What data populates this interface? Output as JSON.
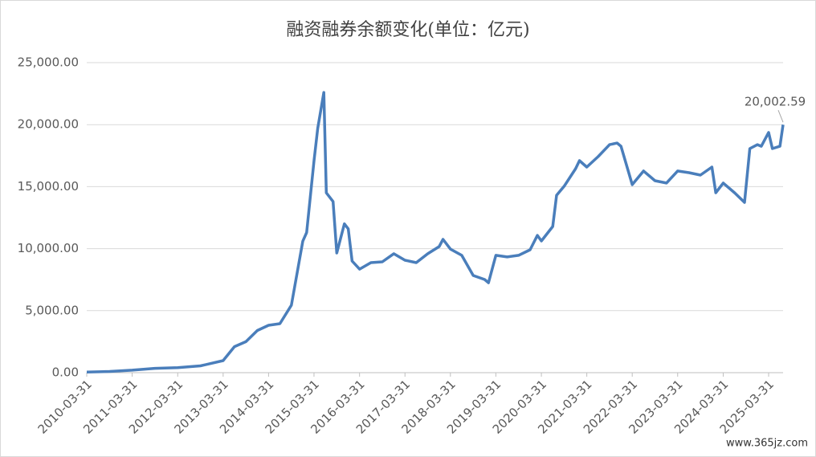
{
  "chart_data": {
    "type": "line",
    "title": "融资融券余额变化(单位：亿元)",
    "watermark": "www.365jz.com",
    "x": [
      "2010-03-31",
      "2010-09-30",
      "2011-03-31",
      "2011-09-30",
      "2012-03-31",
      "2012-09-30",
      "2013-03-31",
      "2013-06-30",
      "2013-09-30",
      "2013-12-31",
      "2014-03-31",
      "2014-06-30",
      "2014-09-30",
      "2014-12-31",
      "2015-01-31",
      "2015-03-31",
      "2015-04-30",
      "2015-06-18",
      "2015-07-08",
      "2015-08-31",
      "2015-09-30",
      "2015-11-30",
      "2015-12-31",
      "2016-01-31",
      "2016-03-31",
      "2016-06-30",
      "2016-09-30",
      "2016-12-31",
      "2017-03-31",
      "2017-06-30",
      "2017-09-30",
      "2017-12-31",
      "2018-01-31",
      "2018-03-31",
      "2018-06-30",
      "2018-09-30",
      "2018-12-31",
      "2019-01-31",
      "2019-03-31",
      "2019-06-30",
      "2019-09-30",
      "2019-12-31",
      "2020-02-28",
      "2020-03-31",
      "2020-06-30",
      "2020-07-31",
      "2020-09-30",
      "2020-12-31",
      "2021-01-31",
      "2021-03-31",
      "2021-06-30",
      "2021-09-30",
      "2021-11-30",
      "2021-12-31",
      "2022-03-31",
      "2022-06-30",
      "2022-09-30",
      "2022-12-31",
      "2023-03-31",
      "2023-06-30",
      "2023-09-30",
      "2023-12-31",
      "2024-01-31",
      "2024-03-31",
      "2024-06-30",
      "2024-09-18",
      "2024-10-31",
      "2024-12-31",
      "2025-01-31",
      "2025-03-31",
      "2025-04-30",
      "2025-06-30",
      "2025-07-25"
    ],
    "series": [
      {
        "name": "融资融券余额",
        "color": "#4a7ebb",
        "values": [
          50,
          100,
          200,
          350,
          400,
          550,
          970,
          2100,
          2500,
          3400,
          3820,
          3950,
          5440,
          10600,
          11300,
          17100,
          19700,
          22600,
          14500,
          13800,
          9650,
          12000,
          11600,
          9000,
          8350,
          8870,
          8940,
          9590,
          9070,
          8870,
          9590,
          10170,
          10750,
          9970,
          9460,
          7840,
          7510,
          7250,
          9460,
          9330,
          9460,
          9910,
          11070,
          10620,
          11790,
          14310,
          15030,
          16450,
          17100,
          16580,
          17420,
          18390,
          18520,
          18260,
          15160,
          16260,
          15480,
          15290,
          16260,
          16130,
          15930,
          16580,
          14510,
          15290,
          14510,
          13730,
          18070,
          18390,
          18260,
          19370,
          18070,
          18260,
          20002.59
        ]
      }
    ],
    "value_labels": [
      null,
      null,
      null,
      null,
      null,
      null,
      null,
      null,
      null,
      null,
      null,
      null,
      null,
      null,
      null,
      null,
      null,
      null,
      null,
      null,
      null,
      null,
      null,
      null,
      null,
      null,
      null,
      null,
      null,
      null,
      null,
      null,
      null,
      null,
      null,
      null,
      null,
      null,
      null,
      null,
      null,
      null,
      null,
      null,
      null,
      null,
      null,
      null,
      null,
      null,
      null,
      null,
      null,
      null,
      null,
      null,
      null,
      null,
      null,
      null,
      null,
      null,
      null,
      null,
      null,
      null,
      null,
      null,
      null,
      null,
      null,
      null,
      "20,002.59"
    ],
    "xlim": [
      "2010-03-31",
      "2025-07-25"
    ],
    "xticks": [
      "2010-03-31",
      "2011-03-31",
      "2012-03-31",
      "2013-03-31",
      "2014-03-31",
      "2015-03-31",
      "2016-03-31",
      "2017-03-31",
      "2018-03-31",
      "2019-03-31",
      "2020-03-31",
      "2021-03-31",
      "2022-03-31",
      "2023-03-31",
      "2024-03-31",
      "2025-03-31"
    ],
    "ylim": [
      0,
      25000
    ],
    "yticks": [
      {
        "value": 0,
        "label": "0.00"
      },
      {
        "value": 5000,
        "label": "5,000.00"
      },
      {
        "value": 10000,
        "label": "10,000.00"
      },
      {
        "value": 15000,
        "label": "15,000.00"
      },
      {
        "value": 20000,
        "label": "20,000.00"
      },
      {
        "value": 25000,
        "label": "25,000.00"
      }
    ],
    "grid": true
  }
}
